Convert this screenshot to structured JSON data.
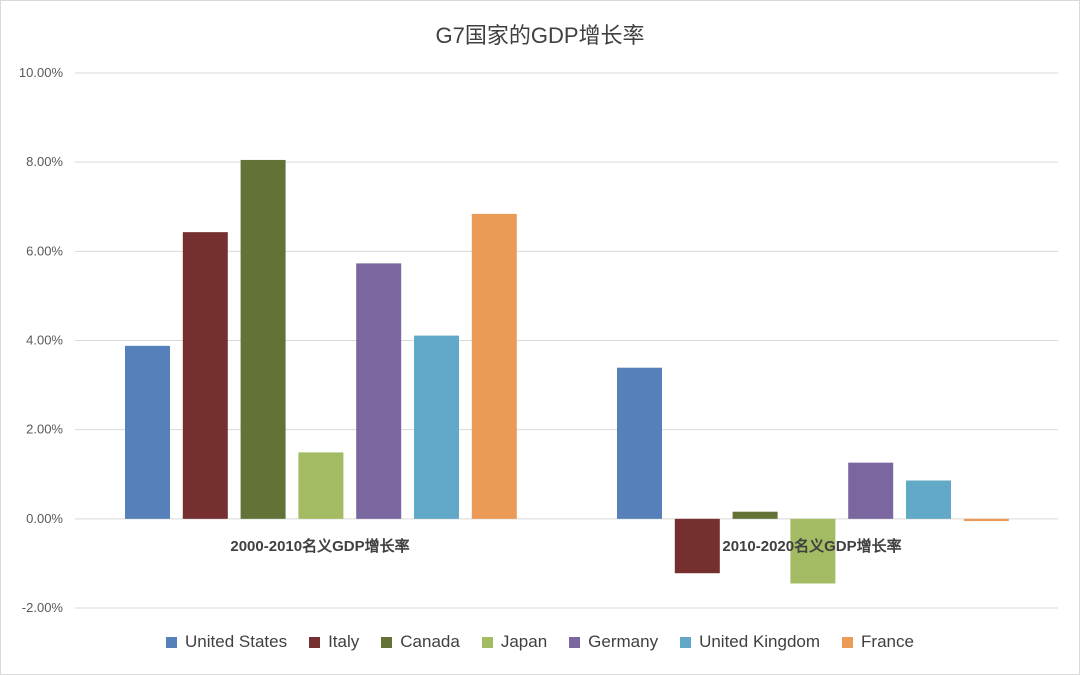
{
  "chart_data": {
    "type": "bar",
    "title": "G7国家的GDP增长率",
    "categories": [
      "2000-2010名义GDP增长率",
      "2010-2020名义GDP增长率"
    ],
    "series": [
      {
        "name": "United States",
        "color": "#5580ba",
        "values": [
          3.88,
          3.39
        ]
      },
      {
        "name": "Italy",
        "color": "#742f2e",
        "values": [
          6.43,
          -1.22
        ]
      },
      {
        "name": "Canada",
        "color": "#637338",
        "values": [
          8.05,
          0.16
        ]
      },
      {
        "name": "Japan",
        "color": "#a3bb62",
        "values": [
          1.49,
          -1.45
        ]
      },
      {
        "name": "Germany",
        "color": "#7b67a0",
        "values": [
          5.73,
          1.26
        ]
      },
      {
        "name": "United Kingdom",
        "color": "#61a9c6",
        "values": [
          4.11,
          0.86
        ]
      },
      {
        "name": "France",
        "color": "#ec9b56",
        "values": [
          6.84,
          -0.05
        ]
      }
    ],
    "ylim": [
      -2,
      10
    ],
    "yticks": [
      "-2.00%",
      "0.00%",
      "2.00%",
      "4.00%",
      "6.00%",
      "8.00%",
      "10.00%"
    ],
    "grid": true,
    "legend": "bottom"
  }
}
